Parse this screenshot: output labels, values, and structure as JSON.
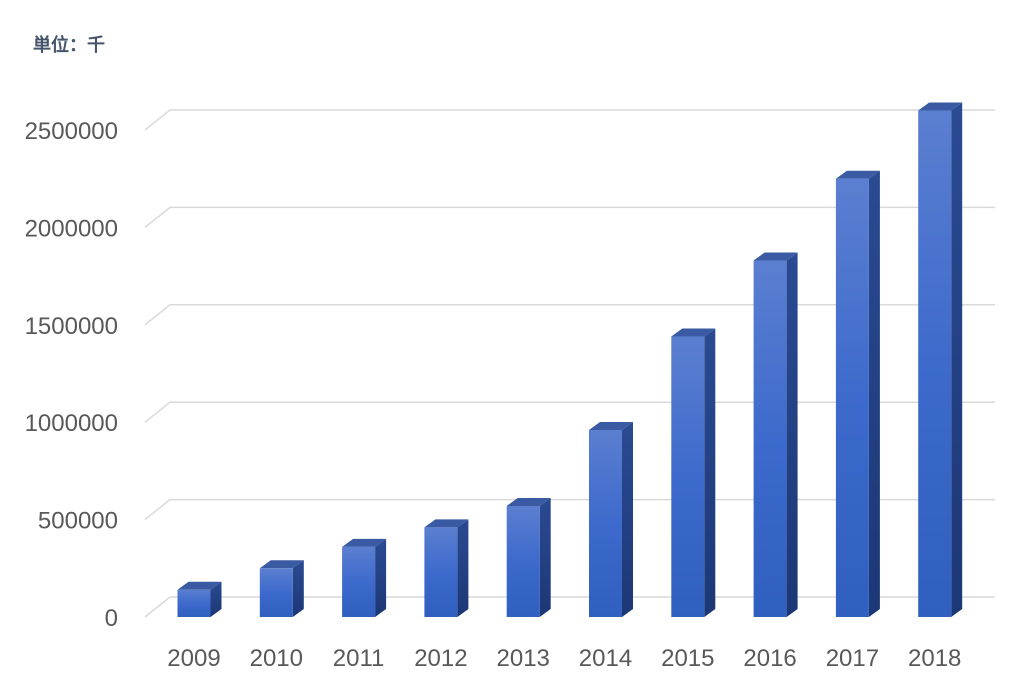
{
  "chart_data": {
    "type": "bar",
    "title": "",
    "unit_label": "単位：千",
    "xlabel": "",
    "ylabel": "",
    "categories": [
      "2009",
      "2010",
      "2011",
      "2012",
      "2013",
      "2014",
      "2015",
      "2016",
      "2017",
      "2018"
    ],
    "series": [
      {
        "name": "",
        "values": [
          140000,
          250000,
          360000,
          460000,
          570000,
          960000,
          1440000,
          1830000,
          2250000,
          2600000
        ]
      }
    ],
    "ylim": [
      0,
      2500000
    ],
    "yticks": [
      "0",
      "500000",
      "1000000",
      "1500000",
      "2000000",
      "2500000"
    ],
    "grid": true,
    "legend": "none",
    "colors": {
      "bar_front_top": "#5b7fd0",
      "bar_front_bottom": "#2f5fbf",
      "bar_side": "#1f3f85",
      "bar_top": "#3a5aa3"
    }
  }
}
